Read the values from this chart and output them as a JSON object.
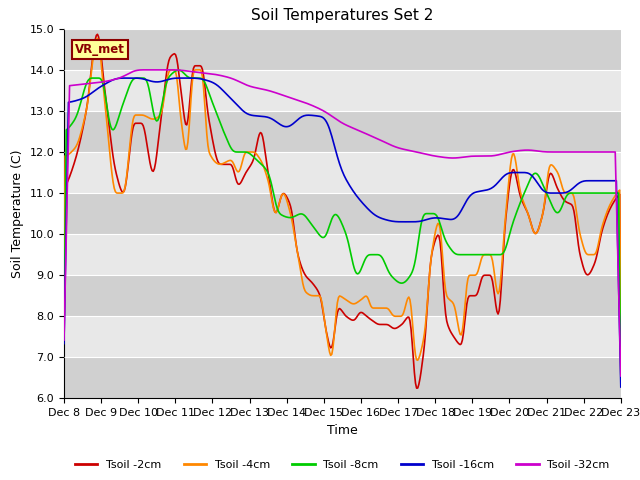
{
  "title": "Soil Temperatures Set 2",
  "xlabel": "Time",
  "ylabel": "Soil Temperature (C)",
  "ylim": [
    6.0,
    15.0
  ],
  "yticks": [
    6.0,
    7.0,
    8.0,
    9.0,
    10.0,
    11.0,
    12.0,
    13.0,
    14.0,
    15.0
  ],
  "x_labels": [
    "Dec 8",
    "Dec 9",
    "Dec 10",
    "Dec 11",
    "Dec 12",
    "Dec 13",
    "Dec 14",
    "Dec 15",
    "Dec 16",
    "Dec 17",
    "Dec 18",
    "Dec 19",
    "Dec 20",
    "Dec 21",
    "Dec 22",
    "Dec 23"
  ],
  "legend_labels": [
    "Tsoil -2cm",
    "Tsoil -4cm",
    "Tsoil -8cm",
    "Tsoil -16cm",
    "Tsoil -32cm"
  ],
  "colors": [
    "#cc0000",
    "#ff8800",
    "#00cc00",
    "#0000cc",
    "#cc00cc"
  ],
  "annotation_text": "VR_met",
  "annotation_box_color": "#ffff99",
  "annotation_box_edge": "#8B0000",
  "linewidth": 1.2,
  "band_colors": [
    "#d0d0d0",
    "#e8e8e8"
  ],
  "t2_x": [
    0,
    0.3,
    0.6,
    0.9,
    1.1,
    1.4,
    1.6,
    1.9,
    2.1,
    2.4,
    2.6,
    2.85,
    3.0,
    3.15,
    3.3,
    3.5,
    3.7,
    3.9,
    4.2,
    4.5,
    4.7,
    4.9,
    5.1,
    5.3,
    5.5,
    5.7,
    5.9,
    6.1,
    6.3,
    6.5,
    6.7,
    6.9,
    7.05,
    7.2,
    7.4,
    7.6,
    7.8,
    8.0,
    8.15,
    8.3,
    8.5,
    8.7,
    8.9,
    9.1,
    9.3,
    9.5,
    9.7,
    9.9,
    10.1,
    10.3,
    10.5,
    10.7,
    10.9,
    11.1,
    11.3,
    11.5,
    11.7,
    11.9,
    12.1,
    12.3,
    12.5,
    12.7,
    12.9,
    13.1,
    13.3,
    13.5,
    13.7,
    13.9,
    14.1,
    14.3,
    14.5,
    14.7,
    14.9,
    15.0
  ],
  "t2_y": [
    11.1,
    11.8,
    13.0,
    14.9,
    13.5,
    11.5,
    11.0,
    12.7,
    12.7,
    11.5,
    12.7,
    14.3,
    14.4,
    13.5,
    12.6,
    14.1,
    14.1,
    12.8,
    11.7,
    11.7,
    11.2,
    11.5,
    11.8,
    12.5,
    11.5,
    10.5,
    11.0,
    10.7,
    9.5,
    9.0,
    8.8,
    8.5,
    7.7,
    7.2,
    8.2,
    8.0,
    7.9,
    8.1,
    8.0,
    7.9,
    7.8,
    7.8,
    7.7,
    7.8,
    8.0,
    6.2,
    7.2,
    9.5,
    10.0,
    7.9,
    7.5,
    7.3,
    8.5,
    8.5,
    9.0,
    9.0,
    8.0,
    10.4,
    11.6,
    10.9,
    10.5,
    10.0,
    10.5,
    11.5,
    11.1,
    10.8,
    10.7,
    9.5,
    9.0,
    9.3,
    10.1,
    10.6,
    10.9,
    11.0
  ],
  "t4_x": [
    0,
    0.3,
    0.6,
    0.9,
    1.1,
    1.4,
    1.6,
    1.9,
    2.1,
    2.4,
    2.6,
    2.85,
    3.0,
    3.15,
    3.3,
    3.5,
    3.7,
    3.9,
    4.2,
    4.5,
    4.7,
    4.9,
    5.1,
    5.3,
    5.5,
    5.7,
    5.9,
    6.1,
    6.3,
    6.5,
    6.7,
    6.9,
    7.05,
    7.2,
    7.4,
    7.6,
    7.8,
    8.0,
    8.15,
    8.3,
    8.5,
    8.7,
    8.9,
    9.1,
    9.3,
    9.5,
    9.7,
    9.9,
    10.1,
    10.3,
    10.5,
    10.7,
    10.9,
    11.1,
    11.3,
    11.5,
    11.7,
    11.9,
    12.1,
    12.3,
    12.5,
    12.7,
    12.9,
    13.1,
    13.3,
    13.5,
    13.7,
    13.9,
    14.1,
    14.3,
    14.5,
    14.7,
    14.9,
    15.0
  ],
  "t4_y": [
    11.9,
    12.1,
    13.0,
    14.8,
    13.2,
    11.0,
    11.0,
    12.9,
    12.9,
    12.8,
    12.9,
    14.0,
    14.0,
    12.8,
    12.0,
    14.0,
    14.0,
    12.0,
    11.7,
    11.8,
    11.5,
    12.0,
    12.0,
    11.8,
    11.3,
    10.5,
    11.0,
    10.5,
    9.5,
    8.6,
    8.5,
    8.5,
    7.7,
    7.0,
    8.5,
    8.4,
    8.3,
    8.4,
    8.5,
    8.2,
    8.2,
    8.2,
    8.0,
    8.0,
    8.5,
    6.9,
    7.5,
    9.5,
    10.3,
    8.5,
    8.3,
    7.5,
    9.0,
    9.0,
    9.5,
    9.5,
    8.5,
    10.5,
    12.0,
    11.0,
    10.5,
    10.0,
    10.5,
    11.7,
    11.5,
    11.0,
    11.0,
    10.0,
    9.5,
    9.5,
    10.2,
    10.7,
    11.0,
    11.1
  ],
  "t8_x": [
    0,
    0.3,
    0.7,
    1.0,
    1.3,
    1.6,
    1.9,
    2.2,
    2.5,
    2.8,
    3.1,
    3.4,
    3.7,
    4.0,
    4.3,
    4.6,
    4.9,
    5.2,
    5.5,
    5.8,
    6.1,
    6.4,
    6.7,
    7.0,
    7.3,
    7.6,
    7.9,
    8.2,
    8.5,
    8.8,
    9.1,
    9.4,
    9.7,
    10.0,
    10.3,
    10.6,
    10.9,
    11.2,
    11.5,
    11.8,
    12.1,
    12.4,
    12.7,
    13.0,
    13.3,
    13.6,
    13.9,
    14.2,
    14.5,
    14.8,
    15.0
  ],
  "t8_y": [
    12.5,
    12.8,
    13.8,
    13.8,
    12.5,
    13.2,
    13.8,
    13.8,
    12.7,
    13.8,
    14.0,
    13.8,
    13.8,
    13.2,
    12.5,
    12.0,
    12.0,
    11.8,
    11.5,
    10.5,
    10.4,
    10.5,
    10.2,
    9.9,
    10.5,
    10.0,
    9.0,
    9.5,
    9.5,
    9.0,
    8.8,
    9.1,
    10.5,
    10.5,
    9.8,
    9.5,
    9.5,
    9.5,
    9.5,
    9.5,
    10.3,
    11.0,
    11.5,
    11.0,
    10.5,
    11.0,
    11.0,
    11.0,
    11.0,
    11.0,
    11.0
  ],
  "t16_x": [
    0,
    0.5,
    1.0,
    1.5,
    2.0,
    2.5,
    3.0,
    3.5,
    4.0,
    4.5,
    5.0,
    5.5,
    6.0,
    6.5,
    7.0,
    7.5,
    8.0,
    8.5,
    9.0,
    9.5,
    10.0,
    10.5,
    11.0,
    11.5,
    12.0,
    12.5,
    13.0,
    13.5,
    14.0,
    14.5,
    15.0
  ],
  "t16_y": [
    13.2,
    13.3,
    13.6,
    13.8,
    13.8,
    13.7,
    13.8,
    13.8,
    13.7,
    13.3,
    12.9,
    12.85,
    12.6,
    12.9,
    12.85,
    11.5,
    10.8,
    10.4,
    10.3,
    10.3,
    10.4,
    10.35,
    11.0,
    11.1,
    11.5,
    11.5,
    11.0,
    11.0,
    11.3,
    11.3,
    11.3
  ],
  "t32_x": [
    0,
    0.5,
    1.0,
    1.5,
    2.0,
    2.5,
    3.0,
    3.5,
    4.0,
    4.5,
    5.0,
    5.5,
    6.0,
    6.5,
    7.0,
    7.5,
    8.0,
    8.5,
    9.0,
    9.5,
    10.0,
    10.5,
    11.0,
    11.5,
    12.0,
    12.5,
    13.0,
    13.5,
    14.0,
    14.5,
    15.0
  ],
  "t32_y": [
    13.6,
    13.65,
    13.7,
    13.8,
    14.0,
    14.0,
    14.0,
    13.95,
    13.9,
    13.8,
    13.6,
    13.5,
    13.35,
    13.2,
    13.0,
    12.7,
    12.5,
    12.3,
    12.1,
    12.0,
    11.9,
    11.85,
    11.9,
    11.9,
    12.0,
    12.05,
    12.0,
    12.0,
    12.0,
    12.0,
    12.0
  ]
}
